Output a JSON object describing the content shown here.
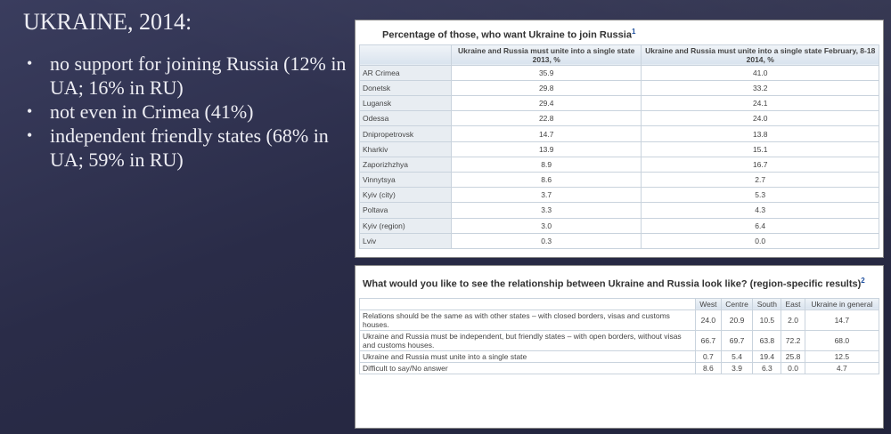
{
  "slide": {
    "title": "UKRAINE, 2014:",
    "bullets": [
      "no support for joining Russia (12% in UA; 16% in RU)",
      "not even in Crimea (41%)",
      "independent friendly states (68% in UA; 59% in RU)"
    ]
  },
  "table1": {
    "title": "Percentage of those, who want Ukraine to join Russia",
    "note_mark": "1",
    "headers": [
      "Ukraine and Russia must unite into a single state 2013, %",
      "Ukraine and Russia must unite into a single state February, 8-18 2014, %"
    ],
    "rows": [
      [
        "AR Crimea",
        "35.9",
        "41.0"
      ],
      [
        "Donetsk",
        "29.8",
        "33.2"
      ],
      [
        "Lugansk",
        "29.4",
        "24.1"
      ],
      [
        "Odessa",
        "22.8",
        "24.0"
      ],
      [
        "Dnipropetrovsk",
        "14.7",
        "13.8"
      ],
      [
        "Kharkiv",
        "13.9",
        "15.1"
      ],
      [
        "Zaporizhzhya",
        "8.9",
        "16.7"
      ],
      [
        "Vinnytsya",
        "8.6",
        "2.7"
      ],
      [
        "Kyiv (city)",
        "3.7",
        "5.3"
      ],
      [
        "Poltava",
        "3.3",
        "4.3"
      ],
      [
        "Kyiv (region)",
        "3.0",
        "6.4"
      ],
      [
        "Lviv",
        "0.3",
        "0.0"
      ]
    ]
  },
  "table2": {
    "title": "What would you like to see the relationship between Ukraine and Russia look like? (region-specific results)",
    "note_mark": "2",
    "headers": [
      "West",
      "Centre",
      "South",
      "East",
      "Ukraine in general"
    ],
    "rows": [
      [
        "Relations should be the same as with other states – with closed borders, visas and customs houses.",
        "24.0",
        "20.9",
        "10.5",
        "2.0",
        "14.7"
      ],
      [
        "Ukraine and Russia must be independent, but friendly states – with open borders, without visas and customs houses.",
        "66.7",
        "69.7",
        "63.8",
        "72.2",
        "68.0"
      ],
      [
        "Ukraine and Russia must unite into a single state",
        "0.7",
        "5.4",
        "19.4",
        "25.8",
        "12.5"
      ],
      [
        "Difficult to say/No answer",
        "8.6",
        "3.9",
        "6.3",
        "0.0",
        "4.7"
      ]
    ]
  }
}
